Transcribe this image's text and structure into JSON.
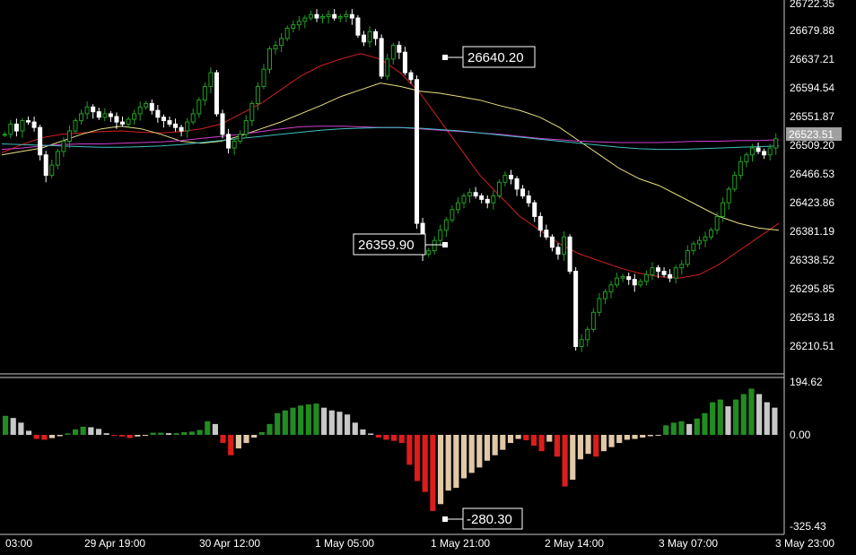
{
  "chart_data": [
    {
      "type": "candlestick",
      "title": "",
      "grid": false,
      "price_axis_ticks": [
        "26722.35",
        "26679.88",
        "26637.21",
        "26594.54",
        "26551.87",
        "26509.20",
        "26466.53",
        "26423.86",
        "26381.19",
        "26338.52",
        "26295.85",
        "26253.18",
        "26210.51"
      ],
      "current_price_label": "26523.51",
      "ylim": [
        26180,
        26722.35
      ],
      "annotations": [
        {
          "text": "26640.20",
          "x": 63,
          "y": 26640.2
        },
        {
          "text": "26359.90",
          "x": 63,
          "y": 26359.9
        }
      ],
      "candle_closes": [
        26530,
        26545,
        26535,
        26550,
        26548,
        26540,
        26500,
        26470,
        26485,
        26505,
        26520,
        26535,
        26550,
        26560,
        26570,
        26563,
        26555,
        26560,
        26556,
        26548,
        26545,
        26552,
        26560,
        26570,
        26575,
        26565,
        26555,
        26550,
        26545,
        26540,
        26535,
        26548,
        26560,
        26580,
        26600,
        26620,
        26560,
        26530,
        26510,
        26520,
        26530,
        26550,
        26575,
        26600,
        26625,
        26655,
        26660,
        26670,
        26685,
        26690,
        26695,
        26700,
        26705,
        26700,
        26702,
        26705,
        26700,
        26702,
        26705,
        26700,
        26675,
        26665,
        26680,
        26670,
        26615,
        26640,
        26660,
        26650,
        26620,
        26610,
        26400,
        26355,
        26360,
        26375,
        26390,
        26405,
        26420,
        26430,
        26440,
        26445,
        26440,
        26435,
        26430,
        26440,
        26460,
        26470,
        26465,
        26450,
        26440,
        26430,
        26410,
        26390,
        26380,
        26365,
        26355,
        26380,
        26330,
        26220,
        26230,
        26245,
        26270,
        26290,
        26300,
        26310,
        26320,
        26322,
        26318,
        26310,
        26315,
        26325,
        26335,
        26330,
        26325,
        26320,
        26335,
        26340,
        26360,
        26370,
        26375,
        26380,
        26390,
        26410,
        26430,
        26450,
        26470,
        26490,
        26500,
        26510,
        26505,
        26500,
        26510,
        26523.51
      ],
      "moving_averages": [
        {
          "color": "#d42020",
          "values": [
            26503,
            26515,
            26525,
            26530,
            26532,
            26534,
            26535,
            26533,
            26532,
            26534,
            26538,
            26545,
            26560,
            26575,
            26595,
            26615,
            26630,
            26640,
            26648,
            26640,
            26620,
            26590,
            26550,
            26510,
            26470,
            26440,
            26410,
            26390,
            26370,
            26355,
            26345,
            26335,
            26327,
            26322,
            26320,
            26325,
            26340,
            26360,
            26380,
            26400
          ]
        },
        {
          "color": "#e8e080",
          "values": [
            26500,
            26505,
            26510,
            26520,
            26530,
            26538,
            26542,
            26538,
            26530,
            26520,
            26517,
            26520,
            26528,
            26538,
            26548,
            26560,
            26572,
            26585,
            26595,
            26605,
            26600,
            26593,
            26590,
            26585,
            26580,
            26572,
            26565,
            26555,
            26540,
            26520,
            26500,
            26480,
            26465,
            26455,
            26440,
            26425,
            26410,
            26400,
            26393,
            26390
          ]
        },
        {
          "color": "#d040d0",
          "values": [
            26508,
            26510,
            26513,
            26515,
            26516,
            26516,
            26517,
            26518,
            26519,
            26521,
            26524,
            26527,
            26530,
            26534,
            26538,
            26541,
            26542,
            26542,
            26541,
            26540,
            26540,
            26538,
            26536,
            26534,
            26532,
            26530,
            26527,
            26524,
            26522,
            26520,
            26519,
            26518,
            26518,
            26518,
            26519,
            26520,
            26520,
            26521,
            26521,
            26522
          ]
        },
        {
          "color": "#40c0c0",
          "values": [
            26516,
            26515,
            26514,
            26513,
            26512,
            26511,
            26511,
            26512,
            26513,
            26515,
            26518,
            26521,
            26524,
            26527,
            26530,
            26533,
            26536,
            26538,
            26539,
            26540,
            26540,
            26539,
            26537,
            26535,
            26532,
            26529,
            26526,
            26523,
            26520,
            26517,
            26514,
            26511,
            26509,
            26508,
            26508,
            26509,
            26510,
            26511,
            26512,
            26513
          ]
        }
      ]
    },
    {
      "type": "histogram",
      "axis_ticks": [
        "194.62",
        "0.00",
        "-325.43"
      ],
      "ylim": [
        -325.43,
        194.62
      ],
      "annotations": [
        {
          "text": "-280.30",
          "x": 63,
          "y": -280.3
        }
      ],
      "values": [
        70,
        62,
        45,
        15,
        -15,
        -18,
        -12,
        -5,
        5,
        20,
        30,
        28,
        22,
        6,
        -3,
        -6,
        -12,
        -6,
        -3,
        8,
        8,
        6,
        6,
        10,
        12,
        18,
        50,
        40,
        -30,
        -75,
        -50,
        -30,
        -10,
        10,
        40,
        80,
        90,
        100,
        108,
        112,
        115,
        100,
        90,
        85,
        75,
        45,
        20,
        5,
        -10,
        -18,
        -22,
        -30,
        -110,
        -170,
        -210,
        -280,
        -255,
        -205,
        -195,
        -160,
        -140,
        -120,
        -95,
        -75,
        -55,
        -30,
        -15,
        -20,
        -40,
        -60,
        -25,
        -80,
        -190,
        -165,
        -90,
        -70,
        -80,
        -60,
        -45,
        -30,
        -18,
        -15,
        -10,
        -5,
        -3,
        35,
        45,
        50,
        40,
        60,
        80,
        120,
        130,
        105,
        130,
        150,
        170,
        150,
        120,
        100
      ],
      "x_axis_ticks": [
        "03:00",
        "29 Apr 19:00",
        "30 Apr 12:00",
        "1 May 05:00",
        "1 May 21:00",
        "2 May 14:00",
        "3 May 07:00",
        "3 May 23:00"
      ]
    }
  ]
}
